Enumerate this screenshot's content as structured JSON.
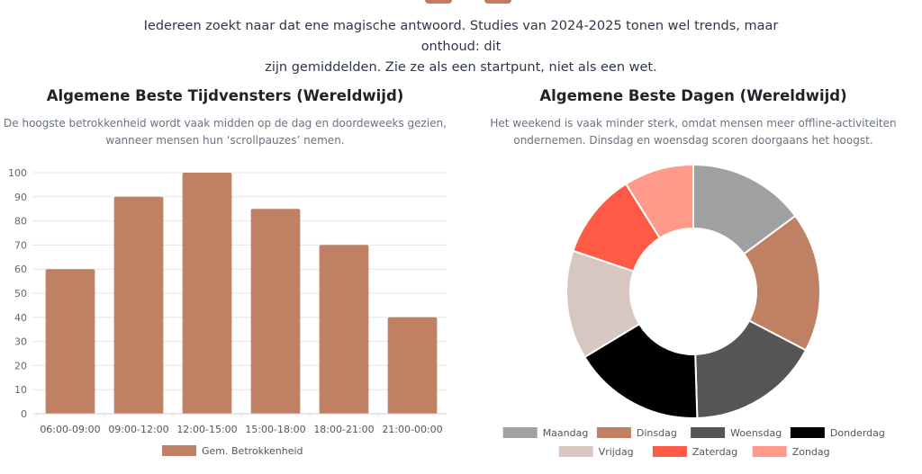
{
  "intro": {
    "line1": "Iedereen zoekt naar dat ene magische antwoord. Studies van 2024-2025 tonen wel trends, maar onthoud: dit",
    "line2": "zijn gemiddelden. Zie ze als een startpunt, niet als een wet."
  },
  "left_panel": {
    "title": "Algemene Beste Tijdvensters (Wereldwijd)",
    "subtitle_line1": "De hoogste betrokkenheid wordt vaak midden op de dag en doordeweeks gezien,",
    "subtitle_line2": "wanneer mensen hun ‘scrollpauzes’ nemen."
  },
  "right_panel": {
    "title": "Algemene Beste Dagen (Wereldwijd)",
    "subtitle_line1": "Het weekend is vaak minder sterk, omdat mensen meer offline-activiteiten",
    "subtitle_line2": "ondernemen. Dinsdag en woensdag scoren doorgaans het hoogst."
  },
  "chart_data": [
    {
      "type": "bar",
      "categories": [
        "06:00-09:00",
        "09:00-12:00",
        "12:00-15:00",
        "15:00-18:00",
        "18:00-21:00",
        "21:00-00:00"
      ],
      "series": [
        {
          "name": "Gem. Betrokkenheid",
          "values": [
            60,
            90,
            100,
            85,
            70,
            40
          ],
          "color": "#c08064"
        }
      ],
      "ylim": [
        0,
        100
      ],
      "yticks": [
        0,
        10,
        20,
        30,
        40,
        50,
        60,
        70,
        80,
        90,
        100
      ],
      "grid": true,
      "legend": "bottom"
    },
    {
      "type": "pie",
      "donut": true,
      "labels": [
        "Maandag",
        "Dinsdag",
        "Woensdag",
        "Donderdag",
        "Vrijdag",
        "Zaterdag",
        "Zondag"
      ],
      "values": [
        15,
        18,
        17,
        17,
        14,
        11,
        9
      ],
      "colors": [
        "#a0a0a0",
        "#c08064",
        "#555555",
        "#000000",
        "#d8c7c0",
        "#ff5a45",
        "#ff9a8a"
      ],
      "legend": "bottom"
    }
  ]
}
